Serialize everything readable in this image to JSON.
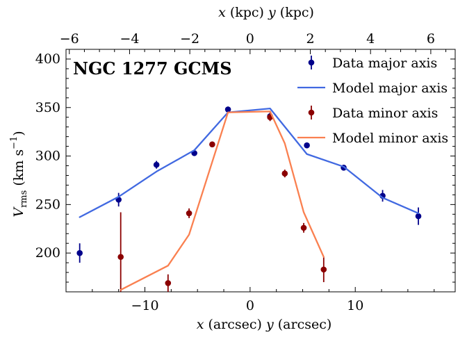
{
  "chart_data": {
    "type": "scatter",
    "title": "NGC 1277 GCMS",
    "xlabel": "x (arcsec)   y (arcsec)",
    "top_xlabel": "x (kpc)   y (kpc)",
    "ylabel": "V_rms (km s^-1)",
    "xlim": [
      -17.5,
      19.5
    ],
    "ylim": [
      160,
      410
    ],
    "top_xlim_kpc": [
      -6.11,
      6.81
    ],
    "x_ticks": [
      -10,
      0,
      10
    ],
    "x_ticklabels": [
      "−10",
      "0",
      "10"
    ],
    "y_ticks": [
      200,
      250,
      300,
      350,
      400
    ],
    "y_ticklabels": [
      "200",
      "250",
      "300",
      "350",
      "400"
    ],
    "top_ticks_kpc": [
      -6,
      -4,
      -2,
      0,
      2,
      4,
      6
    ],
    "top_ticklabels": [
      "−6",
      "−4",
      "−2",
      "0",
      "2",
      "4",
      "6"
    ],
    "legend_position": "top-right",
    "series": [
      {
        "name": "Data major axis",
        "kind": "errorbar",
        "color": "#00008b",
        "x": [
          -16.2,
          -12.5,
          -8.9,
          -5.3,
          -2.1,
          1.9,
          5.4,
          8.9,
          12.6,
          16.0
        ],
        "y": [
          200,
          255,
          291,
          303,
          348,
          341,
          311,
          288,
          259,
          238
        ],
        "yerr": [
          10,
          7,
          4,
          3,
          3,
          4,
          3,
          3,
          6,
          9
        ]
      },
      {
        "name": "Model major axis",
        "kind": "line",
        "color": "#4169e1",
        "x": [
          -16.2,
          -12.5,
          -8.9,
          -5.3,
          -2.1,
          1.9,
          5.4,
          8.9,
          12.6,
          16.0
        ],
        "y": [
          237,
          258,
          284,
          306,
          345,
          349,
          302,
          289,
          257,
          241
        ]
      },
      {
        "name": "Data minor axis",
        "kind": "errorbar",
        "color": "#8b0000",
        "x": [
          -12.3,
          -7.8,
          -5.8,
          -3.6,
          1.9,
          3.3,
          5.1,
          7.0
        ],
        "y": [
          196,
          169,
          241,
          312,
          340,
          282,
          226,
          183
        ],
        "yerr": [
          46,
          9,
          5,
          3,
          4,
          4,
          5,
          13
        ]
      },
      {
        "name": "Model minor axis",
        "kind": "line",
        "color": "#fa8050",
        "x": [
          -12.3,
          -7.8,
          -5.8,
          -2.1,
          1.9,
          3.3,
          5.1,
          7.0
        ],
        "y": [
          162,
          187,
          219,
          345,
          346,
          313,
          242,
          196
        ]
      }
    ]
  }
}
